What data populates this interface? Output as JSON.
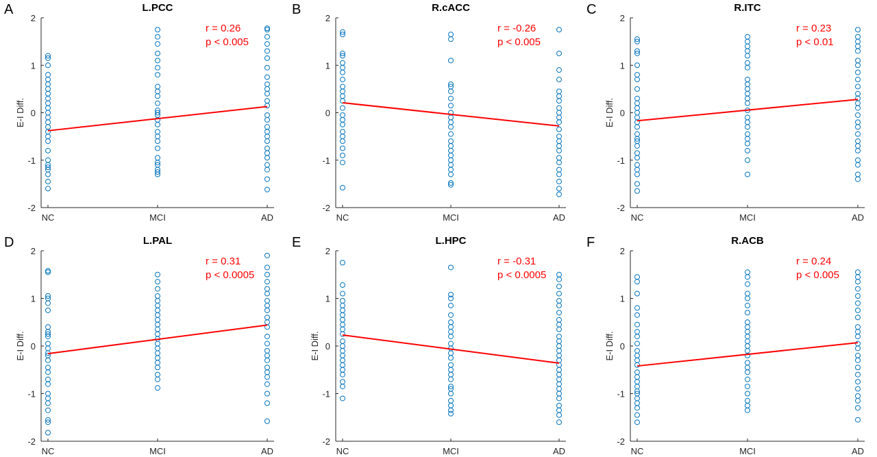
{
  "colors": {
    "points": "#0072BD",
    "fit_line": "#FF0000",
    "stats_text": "#FF0000",
    "axes": "#262626"
  },
  "chart_data": [
    {
      "panel": "A",
      "type": "scatter",
      "title": "L.PCC",
      "ylabel": "E-I Diff.",
      "ylim": [
        -2,
        2
      ],
      "yticks": [
        -2,
        -1,
        0,
        1,
        2
      ],
      "categories": [
        "NC",
        "MCI",
        "AD"
      ],
      "stats": {
        "r": "r = 0.26",
        "p": "p < 0.005"
      },
      "fit": [
        -0.38,
        0.13
      ],
      "points": [
        [
          1.2,
          1.15,
          1.0,
          0.8,
          0.7,
          0.6,
          0.5,
          0.4,
          0.3,
          0.2,
          0.1,
          0.0,
          -0.1,
          -0.2,
          -0.3,
          -0.4,
          -0.5,
          -0.6,
          -0.8,
          -1.0,
          -1.1,
          -1.15,
          -1.2,
          -1.3,
          -1.45,
          -1.6
        ],
        [
          1.75,
          1.6,
          1.45,
          1.25,
          1.1,
          0.95,
          0.8,
          0.55,
          0.45,
          0.35,
          0.2,
          0.05,
          0.0,
          -0.05,
          -0.15,
          -0.25,
          -0.4,
          -0.5,
          -0.6,
          -0.75,
          -0.95,
          -1.05,
          -1.1,
          -1.2,
          -1.25,
          -1.3
        ],
        [
          1.78,
          1.75,
          1.6,
          1.45,
          1.3,
          1.15,
          0.95,
          0.75,
          0.6,
          0.5,
          0.4,
          0.25,
          0.15,
          -0.05,
          -0.15,
          -0.3,
          -0.4,
          -0.5,
          -0.6,
          -0.75,
          -0.85,
          -0.95,
          -1.1,
          -1.2,
          -1.4,
          -1.62
        ]
      ]
    },
    {
      "panel": "B",
      "type": "scatter",
      "title": "R.cACC",
      "ylabel": "",
      "ylim": [
        -2,
        2
      ],
      "yticks": [
        -2,
        -1,
        0,
        1,
        2
      ],
      "categories": [
        "NC",
        "MCI",
        "AD"
      ],
      "stats": {
        "r": "r = -0.26",
        "p": "p < 0.005"
      },
      "fit": [
        0.21,
        -0.28
      ],
      "points": [
        [
          1.7,
          1.65,
          1.25,
          1.2,
          1.05,
          0.95,
          0.85,
          0.7,
          0.55,
          0.45,
          0.35,
          0.25,
          0.1,
          -0.05,
          -0.15,
          -0.25,
          -0.4,
          -0.5,
          -0.6,
          -0.75,
          -0.9,
          -1.05,
          -1.58
        ],
        [
          1.65,
          1.55,
          1.1,
          0.6,
          0.55,
          0.45,
          0.3,
          0.15,
          0.0,
          -0.1,
          -0.2,
          -0.3,
          -0.45,
          -0.6,
          -0.7,
          -0.8,
          -0.9,
          -1.0,
          -1.1,
          -1.2,
          -1.3,
          -1.48,
          -1.52
        ],
        [
          1.75,
          1.25,
          0.9,
          0.7,
          0.45,
          0.35,
          0.25,
          0.1,
          0.0,
          -0.1,
          -0.2,
          -0.35,
          -0.5,
          -0.6,
          -0.7,
          -0.8,
          -0.95,
          -1.05,
          -1.2,
          -1.3,
          -1.45,
          -1.6,
          -1.72
        ]
      ]
    },
    {
      "panel": "C",
      "type": "scatter",
      "title": "R.ITC",
      "ylabel": "E-I Diff.",
      "ylim": [
        -2,
        2
      ],
      "yticks": [
        -2,
        -1,
        0,
        1,
        2
      ],
      "categories": [
        "NC",
        "MCI",
        "AD"
      ],
      "stats": {
        "r": "r = 0.23",
        "p": "p < 0.01"
      },
      "fit": [
        -0.17,
        0.28
      ],
      "points": [
        [
          1.55,
          1.5,
          1.3,
          1.25,
          1.0,
          0.8,
          0.7,
          0.5,
          0.3,
          0.2,
          0.1,
          0.0,
          -0.1,
          -0.2,
          -0.3,
          -0.45,
          -0.55,
          -0.6,
          -0.7,
          -0.85,
          -0.95,
          -1.1,
          -1.2,
          -1.3,
          -1.5,
          -1.65
        ],
        [
          1.6,
          1.5,
          1.4,
          1.3,
          1.2,
          1.05,
          0.95,
          0.7,
          0.6,
          0.5,
          0.4,
          0.3,
          0.2,
          0.05,
          -0.1,
          -0.2,
          -0.3,
          -0.45,
          -0.55,
          -0.65,
          -0.8,
          -1.0,
          -1.3
        ],
        [
          1.75,
          1.6,
          1.5,
          1.4,
          1.3,
          1.1,
          1.0,
          0.85,
          0.7,
          0.55,
          0.4,
          0.3,
          0.2,
          0.1,
          -0.05,
          -0.2,
          -0.3,
          -0.45,
          -0.6,
          -0.7,
          -0.8,
          -1.0,
          -1.1,
          -1.3,
          -1.4
        ]
      ]
    },
    {
      "panel": "D",
      "type": "scatter",
      "title": "L.PAL",
      "ylabel": "E-I Diff.",
      "ylim": [
        -2,
        2
      ],
      "yticks": [
        -2,
        -1,
        0,
        1,
        2
      ],
      "categories": [
        "NC",
        "MCI",
        "AD"
      ],
      "stats": {
        "r": "r = 0.31",
        "p": "p < 0.0005"
      },
      "fit": [
        -0.16,
        0.44
      ],
      "points": [
        [
          1.58,
          1.55,
          1.05,
          1.0,
          0.9,
          0.75,
          0.4,
          0.3,
          0.25,
          0.2,
          0.05,
          -0.05,
          -0.15,
          -0.2,
          -0.3,
          -0.45,
          -0.55,
          -0.7,
          -0.8,
          -1.0,
          -1.1,
          -1.2,
          -1.35,
          -1.55,
          -1.6,
          -1.82
        ],
        [
          1.5,
          1.35,
          1.2,
          1.05,
          0.95,
          0.85,
          0.75,
          0.65,
          0.55,
          0.45,
          0.35,
          0.25,
          0.15,
          0.05,
          -0.05,
          -0.15,
          -0.25,
          -0.35,
          -0.45,
          -0.6,
          -0.7,
          -0.88
        ],
        [
          1.9,
          1.65,
          1.5,
          1.35,
          1.2,
          1.1,
          0.95,
          0.85,
          0.75,
          0.6,
          0.5,
          0.4,
          0.2,
          0.05,
          -0.1,
          -0.2,
          -0.3,
          -0.45,
          -0.55,
          -0.65,
          -0.8,
          -1.0,
          -1.2,
          -1.58
        ]
      ]
    },
    {
      "panel": "E",
      "type": "scatter",
      "title": "L.HPC",
      "ylabel": "E-I Diff.",
      "ylim": [
        -2,
        2
      ],
      "yticks": [
        -2,
        -1,
        0,
        1,
        2
      ],
      "categories": [
        "NC",
        "MCI",
        "AD"
      ],
      "stats": {
        "r": "r = -0.31",
        "p": "p < 0.0005"
      },
      "fit": [
        0.23,
        -0.36
      ],
      "points": [
        [
          1.75,
          1.28,
          1.1,
          0.95,
          0.85,
          0.75,
          0.65,
          0.55,
          0.45,
          0.35,
          0.25,
          0.1,
          0.0,
          -0.1,
          -0.2,
          -0.3,
          -0.4,
          -0.5,
          -0.6,
          -0.75,
          -0.85,
          -1.1
        ],
        [
          1.65,
          1.08,
          1.0,
          0.85,
          0.65,
          0.5,
          0.4,
          0.3,
          0.2,
          0.05,
          -0.05,
          -0.15,
          -0.25,
          -0.4,
          -0.5,
          -0.6,
          -0.7,
          -0.85,
          -0.9,
          -1.0,
          -1.15,
          -1.25,
          -1.35,
          -1.42
        ],
        [
          1.5,
          1.4,
          1.25,
          1.1,
          0.95,
          0.85,
          0.7,
          0.55,
          0.45,
          0.35,
          0.2,
          0.1,
          0.0,
          -0.1,
          -0.2,
          -0.3,
          -0.4,
          -0.5,
          -0.6,
          -0.7,
          -0.8,
          -0.9,
          -1.0,
          -1.1,
          -1.25,
          -1.35,
          -1.45,
          -1.6
        ]
      ]
    },
    {
      "panel": "F",
      "type": "scatter",
      "title": "R.ACB",
      "ylabel": "E-I Diff.",
      "ylim": [
        -2,
        2
      ],
      "yticks": [
        -2,
        -1,
        0,
        1,
        2
      ],
      "categories": [
        "NC",
        "MCI",
        "AD"
      ],
      "stats": {
        "r": "r = 0.24",
        "p": "p < 0.005"
      },
      "fit": [
        -0.42,
        0.07
      ],
      "points": [
        [
          1.45,
          1.35,
          1.1,
          0.8,
          0.65,
          0.45,
          0.3,
          0.2,
          0.05,
          -0.1,
          -0.2,
          -0.3,
          -0.4,
          -0.55,
          -0.65,
          -0.75,
          -0.85,
          -0.95,
          -1.0,
          -1.1,
          -1.2,
          -1.3,
          -1.45,
          -1.6
        ],
        [
          1.55,
          1.45,
          1.3,
          1.1,
          1.0,
          0.85,
          0.7,
          0.5,
          0.4,
          0.3,
          0.2,
          0.1,
          0.0,
          -0.1,
          -0.2,
          -0.35,
          -0.45,
          -0.55,
          -0.7,
          -0.85,
          -1.0,
          -1.15,
          -1.25,
          -1.35
        ],
        [
          1.55,
          1.45,
          1.35,
          1.2,
          1.05,
          0.9,
          0.75,
          0.6,
          0.4,
          0.3,
          0.2,
          0.05,
          -0.05,
          -0.2,
          -0.3,
          -0.45,
          -0.6,
          -0.75,
          -0.9,
          -1.05,
          -1.15,
          -1.3,
          -1.55
        ]
      ]
    }
  ]
}
